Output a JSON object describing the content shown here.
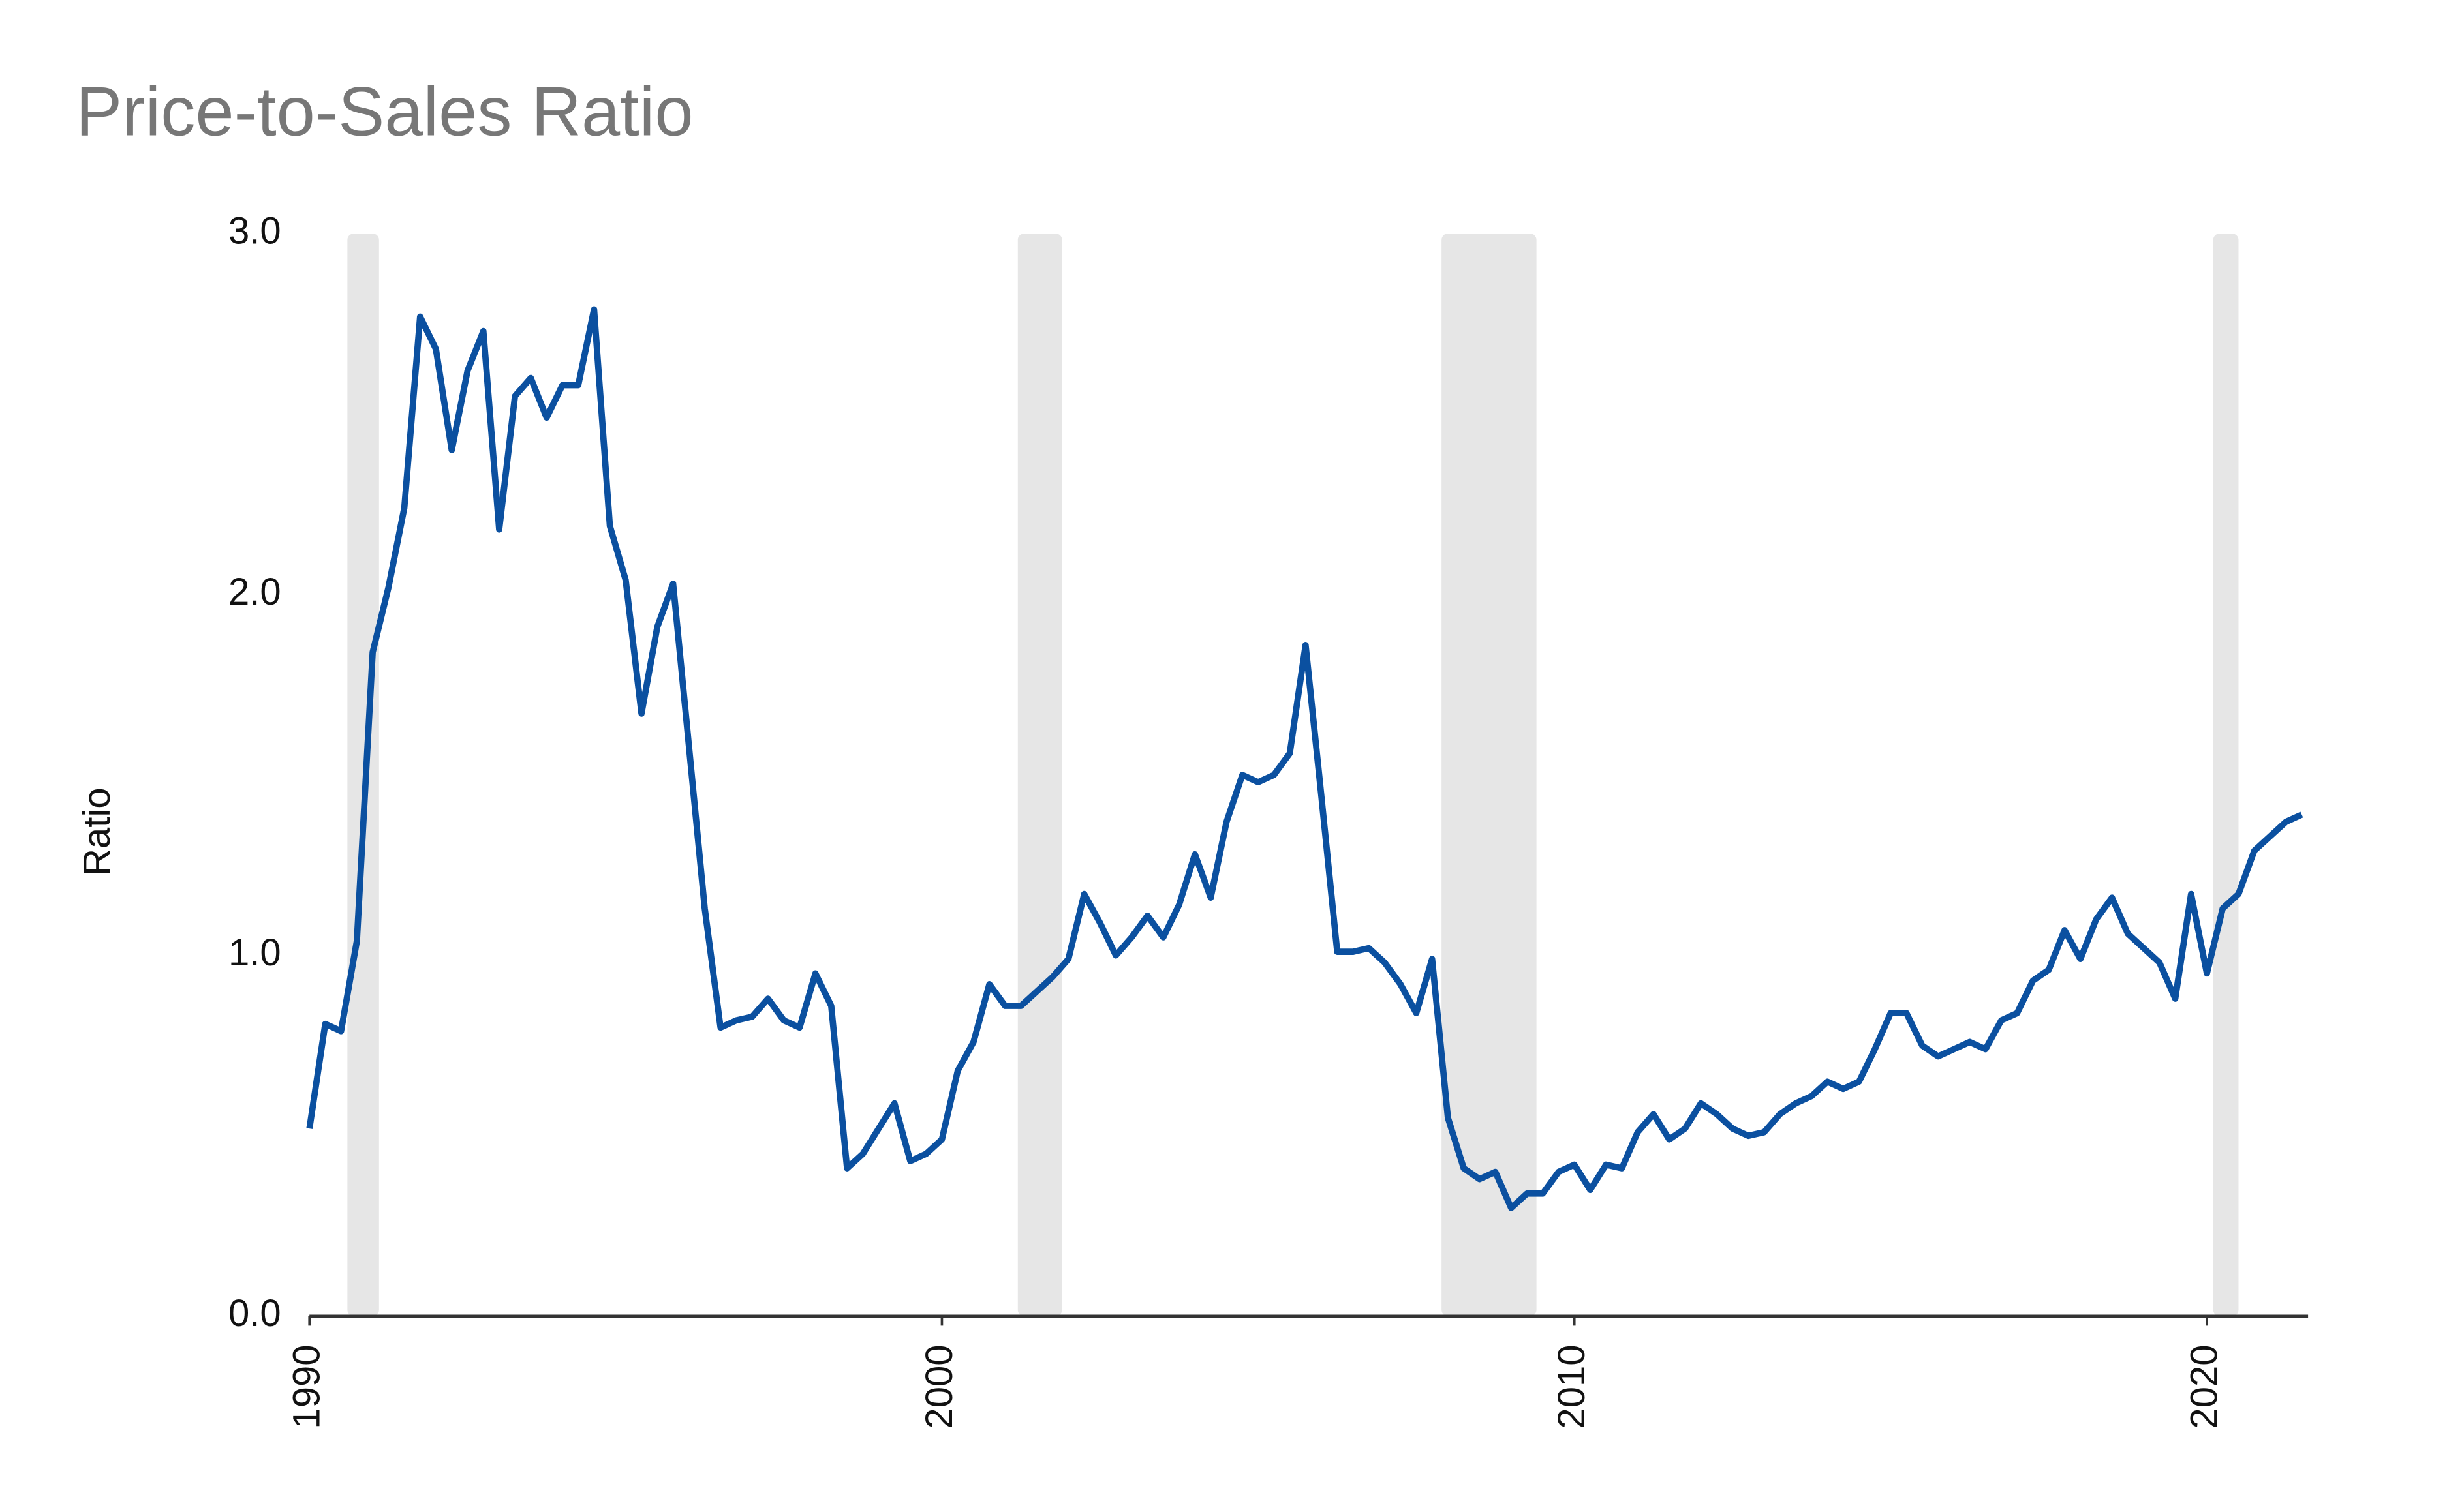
{
  "chart_data": {
    "type": "line",
    "title": "Price-to-Sales Ratio",
    "ylabel": "Ratio",
    "xlim": [
      1990,
      2021.6
    ],
    "xticks": [
      1990,
      2000,
      2010,
      2020
    ],
    "ylim": [
      0,
      3
    ],
    "yticks": [
      {
        "value": 0,
        "label": "0.0"
      },
      {
        "value": 1,
        "label": "1.0"
      },
      {
        "value": 2,
        "label": "2.0"
      },
      {
        "value": 3,
        "label": "3.0"
      }
    ],
    "recessions": [
      [
        1990.6,
        1991.1
      ],
      [
        2001.2,
        2001.9
      ],
      [
        2007.9,
        2009.4
      ],
      [
        2020.1,
        2020.5
      ]
    ],
    "x": [
      1990,
      1990.25,
      1990.5,
      1990.75,
      1991,
      1991.25,
      1991.5,
      1991.75,
      1992,
      1992.25,
      1992.5,
      1992.75,
      1993,
      1993.25,
      1993.5,
      1993.75,
      1994,
      1994.25,
      1994.5,
      1994.75,
      1995,
      1995.25,
      1995.5,
      1995.75,
      1996,
      1996.25,
      1996.5,
      1996.75,
      1997,
      1997.25,
      1997.5,
      1997.75,
      1998,
      1998.25,
      1998.5,
      1998.75,
      1999,
      1999.25,
      1999.5,
      1999.75,
      2000,
      2000.25,
      2000.5,
      2000.75,
      2001,
      2001.25,
      2001.5,
      2001.75,
      2002,
      2002.25,
      2002.5,
      2002.75,
      2003,
      2003.25,
      2003.5,
      2003.75,
      2004,
      2004.25,
      2004.5,
      2004.75,
      2005,
      2005.25,
      2005.5,
      2005.75,
      2006,
      2006.25,
      2006.5,
      2006.75,
      2007,
      2007.25,
      2007.5,
      2007.75,
      2008,
      2008.25,
      2008.5,
      2008.75,
      2009,
      2009.25,
      2009.5,
      2009.75,
      2010,
      2010.25,
      2010.5,
      2010.75,
      2011,
      2011.25,
      2011.5,
      2011.75,
      2012,
      2012.25,
      2012.5,
      2012.75,
      2013,
      2013.25,
      2013.5,
      2013.75,
      2014,
      2014.25,
      2014.5,
      2014.75,
      2015,
      2015.25,
      2015.5,
      2015.75,
      2016,
      2016.25,
      2016.5,
      2016.75,
      2017,
      2017.25,
      2017.5,
      2017.75,
      2018,
      2018.25,
      2018.5,
      2018.75,
      2019,
      2019.25,
      2019.5,
      2019.75,
      2020,
      2020.25,
      2020.5,
      2020.75,
      2021,
      2021.25,
      2021.5
    ],
    "series": [
      {
        "name": "Price-to-Sales Ratio",
        "color": "#0b50a0",
        "values": [
          0.52,
          0.81,
          0.79,
          1.04,
          1.84,
          2.02,
          2.24,
          2.77,
          2.68,
          2.4,
          2.62,
          2.73,
          2.18,
          2.55,
          2.6,
          2.49,
          2.58,
          2.58,
          2.79,
          2.19,
          2.04,
          1.67,
          1.91,
          2.03,
          1.58,
          1.13,
          0.8,
          0.82,
          0.83,
          0.88,
          0.82,
          0.8,
          0.95,
          0.86,
          0.41,
          0.45,
          0.52,
          0.59,
          0.43,
          0.45,
          0.49,
          0.68,
          0.76,
          0.92,
          0.86,
          0.86,
          0.9,
          0.94,
          0.99,
          1.17,
          1.09,
          1.0,
          1.05,
          1.11,
          1.05,
          1.14,
          1.28,
          1.16,
          1.37,
          1.5,
          1.48,
          1.5,
          1.56,
          1.86,
          1.44,
          1.01,
          1.01,
          1.02,
          0.98,
          0.92,
          0.84,
          0.99,
          0.55,
          0.41,
          0.38,
          0.4,
          0.3,
          0.34,
          0.34,
          0.4,
          0.42,
          0.35,
          0.42,
          0.41,
          0.51,
          0.56,
          0.49,
          0.52,
          0.59,
          0.56,
          0.52,
          0.5,
          0.51,
          0.56,
          0.59,
          0.61,
          0.65,
          0.63,
          0.65,
          0.74,
          0.84,
          0.84,
          0.75,
          0.72,
          0.74,
          0.76,
          0.74,
          0.82,
          0.84,
          0.93,
          0.96,
          1.07,
          0.99,
          1.1,
          1.16,
          1.06,
          1.02,
          0.98,
          0.88,
          1.17,
          0.95,
          1.13,
          1.17,
          1.29,
          1.33,
          1.37,
          1.39
        ]
      }
    ]
  }
}
